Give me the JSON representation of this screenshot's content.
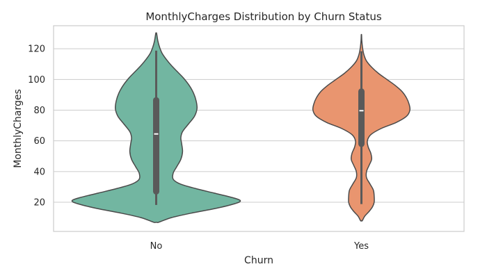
{
  "chart_data": {
    "type": "violin",
    "title": "MonthlyCharges Distribution by Churn Status",
    "xlabel": "Churn",
    "ylabel": "MonthlyCharges",
    "categories": [
      "No",
      "Yes"
    ],
    "ylim": [
      1,
      135
    ],
    "yticks": [
      20,
      40,
      60,
      80,
      100,
      120
    ],
    "grid": true,
    "series": [
      {
        "category": "No",
        "color": "#72b6a1",
        "kde_extent": [
          7,
          130
        ],
        "whisker": [
          18.25,
          118.75
        ],
        "quartiles": [
          25,
          88.5
        ],
        "median": 64.5,
        "density": [
          [
            7,
            0.03
          ],
          [
            10,
            0.18
          ],
          [
            13,
            0.42
          ],
          [
            16,
            0.7
          ],
          [
            19,
            0.92
          ],
          [
            21,
            0.99
          ],
          [
            23,
            0.9
          ],
          [
            26,
            0.68
          ],
          [
            29,
            0.46
          ],
          [
            32,
            0.28
          ],
          [
            35,
            0.2
          ],
          [
            39,
            0.2
          ],
          [
            43,
            0.24
          ],
          [
            48,
            0.29
          ],
          [
            53,
            0.31
          ],
          [
            58,
            0.3
          ],
          [
            62,
            0.29
          ],
          [
            66,
            0.31
          ],
          [
            71,
            0.38
          ],
          [
            76,
            0.45
          ],
          [
            81,
            0.48
          ],
          [
            86,
            0.47
          ],
          [
            91,
            0.44
          ],
          [
            96,
            0.39
          ],
          [
            101,
            0.32
          ],
          [
            105,
            0.25
          ],
          [
            109,
            0.18
          ],
          [
            113,
            0.12
          ],
          [
            117,
            0.07
          ],
          [
            121,
            0.04
          ],
          [
            125,
            0.02
          ],
          [
            130,
            0.005
          ]
        ]
      },
      {
        "category": "Yes",
        "color": "#e9956f",
        "kde_extent": [
          8,
          129
        ],
        "whisker": [
          18.85,
          118.35
        ],
        "quartiles": [
          56,
          94.2
        ],
        "median": 79.65,
        "density": [
          [
            8,
            0.01
          ],
          [
            11,
            0.04
          ],
          [
            14,
            0.09
          ],
          [
            17,
            0.13
          ],
          [
            20,
            0.15
          ],
          [
            24,
            0.15
          ],
          [
            28,
            0.14
          ],
          [
            32,
            0.1
          ],
          [
            36,
            0.06
          ],
          [
            40,
            0.06
          ],
          [
            44,
            0.09
          ],
          [
            48,
            0.12
          ],
          [
            52,
            0.11
          ],
          [
            56,
            0.08
          ],
          [
            60,
            0.07
          ],
          [
            64,
            0.11
          ],
          [
            68,
            0.23
          ],
          [
            72,
            0.41
          ],
          [
            76,
            0.53
          ],
          [
            80,
            0.57
          ],
          [
            84,
            0.56
          ],
          [
            88,
            0.53
          ],
          [
            92,
            0.48
          ],
          [
            96,
            0.4
          ],
          [
            100,
            0.3
          ],
          [
            104,
            0.2
          ],
          [
            108,
            0.12
          ],
          [
            112,
            0.06
          ],
          [
            116,
            0.03
          ],
          [
            120,
            0.015
          ],
          [
            125,
            0.005
          ],
          [
            129,
            0.002
          ]
        ]
      }
    ]
  }
}
